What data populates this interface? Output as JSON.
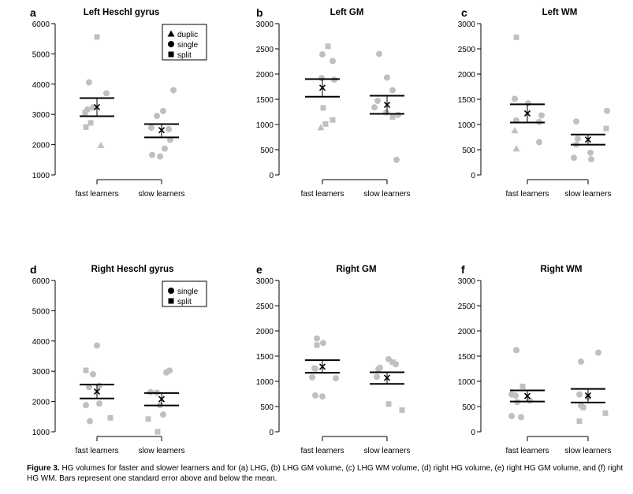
{
  "legend_markers": {
    "duplic": "triangle",
    "single": "circle",
    "split": "square"
  },
  "colors": {
    "points": "#c0c0c0",
    "bars": "#000000",
    "axes": "#000000"
  },
  "caption": {
    "label": "Figure 3.",
    "text": "HG volumes for faster and slower learners and for (a) LHG, (b) LHG GM volume, (c) LHG WM volume, (d) right HG volume, (e) right HG GM volume, and (f) right HG WM. Bars represent one standard error above and below the mean."
  },
  "chart_data": [
    {
      "panel": "a",
      "title": "Left Heschl gyrus",
      "type": "scatter",
      "categories": [
        "fast learners",
        "slow learners"
      ],
      "ylim": [
        1000,
        6000
      ],
      "yticks": [
        1000,
        2000,
        3000,
        4000,
        5000,
        6000
      ],
      "legend": {
        "entries": [
          "duplic",
          "single",
          "split"
        ],
        "placement": "top-right"
      },
      "groups": [
        {
          "category": "fast learners",
          "mean": 3240,
          "se_low": 2940,
          "se_high": 3540,
          "points": [
            {
              "v": 5560,
              "m": "split",
              "o": 0
            },
            {
              "v": 4060,
              "m": "single",
              "o": -10
            },
            {
              "v": 3700,
              "m": "single",
              "o": 12
            },
            {
              "v": 3230,
              "m": "single",
              "o": -5
            },
            {
              "v": 3160,
              "m": "single",
              "o": -12
            },
            {
              "v": 3060,
              "m": "split",
              "o": -15
            },
            {
              "v": 2720,
              "m": "split",
              "o": -8
            },
            {
              "v": 2580,
              "m": "split",
              "o": -14
            },
            {
              "v": 1980,
              "m": "duplic",
              "o": 5
            }
          ]
        },
        {
          "category": "slow learners",
          "mean": 2480,
          "se_low": 2240,
          "se_high": 2680,
          "points": [
            {
              "v": 3800,
              "m": "single",
              "o": 15
            },
            {
              "v": 3110,
              "m": "single",
              "o": 2
            },
            {
              "v": 2950,
              "m": "single",
              "o": -6
            },
            {
              "v": 2560,
              "m": "single",
              "o": -13
            },
            {
              "v": 2510,
              "m": "single",
              "o": 9
            },
            {
              "v": 2160,
              "m": "single",
              "o": 11
            },
            {
              "v": 1870,
              "m": "single",
              "o": 4
            },
            {
              "v": 1660,
              "m": "single",
              "o": -12
            },
            {
              "v": 1610,
              "m": "single",
              "o": -2
            }
          ]
        }
      ]
    },
    {
      "panel": "b",
      "title": "Left GM",
      "type": "scatter",
      "categories": [
        "fast learners",
        "slow learners"
      ],
      "ylim": [
        0,
        3000
      ],
      "yticks": [
        0,
        500,
        1000,
        1500,
        2000,
        2500,
        3000
      ],
      "groups": [
        {
          "category": "fast learners",
          "mean": 1730,
          "se_low": 1550,
          "se_high": 1900,
          "points": [
            {
              "v": 2550,
              "m": "split",
              "o": 7
            },
            {
              "v": 2390,
              "m": "single",
              "o": 0
            },
            {
              "v": 2260,
              "m": "single",
              "o": 13
            },
            {
              "v": 1920,
              "m": "single",
              "o": -1
            },
            {
              "v": 1890,
              "m": "single",
              "o": 15
            },
            {
              "v": 1330,
              "m": "split",
              "o": 1
            },
            {
              "v": 1090,
              "m": "split",
              "o": 13
            },
            {
              "v": 1010,
              "m": "split",
              "o": 4
            },
            {
              "v": 940,
              "m": "duplic",
              "o": -2
            }
          ]
        },
        {
          "category": "slow learners",
          "mean": 1390,
          "se_low": 1210,
          "se_high": 1570,
          "points": [
            {
              "v": 2400,
              "m": "single",
              "o": -10
            },
            {
              "v": 1930,
              "m": "single",
              "o": 0
            },
            {
              "v": 1680,
              "m": "single",
              "o": 7
            },
            {
              "v": 1470,
              "m": "single",
              "o": -12
            },
            {
              "v": 1340,
              "m": "single",
              "o": -16
            },
            {
              "v": 1240,
              "m": "single",
              "o": -1
            },
            {
              "v": 1190,
              "m": "single",
              "o": 14
            },
            {
              "v": 1150,
              "m": "split",
              "o": 7
            },
            {
              "v": 300,
              "m": "single",
              "o": 12
            }
          ]
        }
      ]
    },
    {
      "panel": "c",
      "title": "Left WM",
      "type": "scatter",
      "categories": [
        "fast learners",
        "slow learners"
      ],
      "ylim": [
        0,
        3000
      ],
      "yticks": [
        0,
        500,
        1000,
        1500,
        2000,
        2500,
        3000
      ],
      "groups": [
        {
          "category": "fast learners",
          "mean": 1220,
          "se_low": 1040,
          "se_high": 1400,
          "points": [
            {
              "v": 2730,
              "m": "split",
              "o": -14
            },
            {
              "v": 1510,
              "m": "single",
              "o": -16
            },
            {
              "v": 1420,
              "m": "single",
              "o": 1
            },
            {
              "v": 1180,
              "m": "single",
              "o": 18
            },
            {
              "v": 1080,
              "m": "single",
              "o": -14
            },
            {
              "v": 1050,
              "m": "single",
              "o": 15
            },
            {
              "v": 880,
              "m": "duplic",
              "o": -16
            },
            {
              "v": 650,
              "m": "single",
              "o": 15
            },
            {
              "v": 520,
              "m": "duplic",
              "o": -14
            }
          ]
        },
        {
          "category": "slow learners",
          "mean": 700,
          "se_low": 600,
          "se_high": 800,
          "points": [
            {
              "v": 1270,
              "m": "single",
              "o": 24
            },
            {
              "v": 1060,
              "m": "single",
              "o": -15
            },
            {
              "v": 920,
              "m": "split",
              "o": 23
            },
            {
              "v": 720,
              "m": "single",
              "o": -13
            },
            {
              "v": 600,
              "m": "single",
              "o": -15
            },
            {
              "v": 440,
              "m": "single",
              "o": 3
            },
            {
              "v": 340,
              "m": "single",
              "o": -18
            },
            {
              "v": 310,
              "m": "single",
              "o": 4
            }
          ]
        }
      ]
    },
    {
      "panel": "d",
      "title": "Right Heschl gyrus",
      "type": "scatter",
      "categories": [
        "fast learners",
        "slow learners"
      ],
      "ylim": [
        1000,
        6000
      ],
      "yticks": [
        1000,
        2000,
        3000,
        4000,
        5000,
        6000
      ],
      "legend": {
        "entries": [
          "single",
          "split"
        ],
        "placement": "top-right"
      },
      "groups": [
        {
          "category": "fast learners",
          "mean": 2330,
          "se_low": 2100,
          "se_high": 2560,
          "points": [
            {
              "v": 3850,
              "m": "single",
              "o": 0
            },
            {
              "v": 3030,
              "m": "split",
              "o": -14
            },
            {
              "v": 2900,
              "m": "single",
              "o": -5
            },
            {
              "v": 2520,
              "m": "single",
              "o": 3
            },
            {
              "v": 2480,
              "m": "single",
              "o": -10
            },
            {
              "v": 1930,
              "m": "single",
              "o": 3
            },
            {
              "v": 1880,
              "m": "single",
              "o": -14
            },
            {
              "v": 1460,
              "m": "split",
              "o": 17
            },
            {
              "v": 1350,
              "m": "single",
              "o": -9
            }
          ]
        },
        {
          "category": "slow learners",
          "mean": 2080,
          "se_low": 1870,
          "se_high": 2280,
          "points": [
            {
              "v": 3020,
              "m": "single",
              "o": 10
            },
            {
              "v": 2960,
              "m": "single",
              "o": 6
            },
            {
              "v": 2310,
              "m": "single",
              "o": -14
            },
            {
              "v": 2290,
              "m": "single",
              "o": -6
            },
            {
              "v": 1880,
              "m": "single",
              "o": -2
            },
            {
              "v": 1570,
              "m": "single",
              "o": 2
            },
            {
              "v": 1420,
              "m": "split",
              "o": -17
            },
            {
              "v": 1000,
              "m": "split",
              "o": -5
            }
          ]
        }
      ]
    },
    {
      "panel": "e",
      "title": "Right GM",
      "type": "scatter",
      "categories": [
        "fast learners",
        "slow learners"
      ],
      "ylim": [
        0,
        3000
      ],
      "yticks": [
        0,
        500,
        1000,
        1500,
        2000,
        2500,
        3000
      ],
      "groups": [
        {
          "category": "fast learners",
          "mean": 1290,
          "se_low": 1170,
          "se_high": 1420,
          "points": [
            {
              "v": 1850,
              "m": "single",
              "o": -7
            },
            {
              "v": 1760,
              "m": "single",
              "o": 1
            },
            {
              "v": 1720,
              "m": "split",
              "o": -7
            },
            {
              "v": 1260,
              "m": "single",
              "o": -10
            },
            {
              "v": 1250,
              "m": "single",
              "o": -9
            },
            {
              "v": 1080,
              "m": "single",
              "o": -13
            },
            {
              "v": 1060,
              "m": "single",
              "o": 17
            },
            {
              "v": 720,
              "m": "single",
              "o": -9
            },
            {
              "v": 700,
              "m": "single",
              "o": 0
            }
          ]
        },
        {
          "category": "slow learners",
          "mean": 1070,
          "se_low": 950,
          "se_high": 1180,
          "points": [
            {
              "v": 1440,
              "m": "single",
              "o": 2
            },
            {
              "v": 1380,
              "m": "split",
              "o": 7
            },
            {
              "v": 1340,
              "m": "single",
              "o": 11
            },
            {
              "v": 1270,
              "m": "single",
              "o": -9
            },
            {
              "v": 1240,
              "m": "single",
              "o": -11
            },
            {
              "v": 1090,
              "m": "single",
              "o": -13
            },
            {
              "v": 550,
              "m": "split",
              "o": 2
            },
            {
              "v": 430,
              "m": "split",
              "o": 19
            }
          ]
        }
      ]
    },
    {
      "panel": "f",
      "title": "Right WM",
      "type": "scatter",
      "categories": [
        "fast learners",
        "slow learners"
      ],
      "ylim": [
        0,
        3000
      ],
      "yticks": [
        0,
        500,
        1000,
        1500,
        2000,
        2500,
        3000
      ],
      "groups": [
        {
          "category": "fast learners",
          "mean": 710,
          "se_low": 600,
          "se_high": 820,
          "points": [
            {
              "v": 1620,
              "m": "single",
              "o": -14
            },
            {
              "v": 900,
              "m": "split",
              "o": -6
            },
            {
              "v": 740,
              "m": "single",
              "o": -20
            },
            {
              "v": 720,
              "m": "single",
              "o": -15
            },
            {
              "v": 620,
              "m": "single",
              "o": 3
            },
            {
              "v": 590,
              "m": "single",
              "o": -13
            },
            {
              "v": 310,
              "m": "single",
              "o": -20
            },
            {
              "v": 290,
              "m": "single",
              "o": -8
            }
          ]
        },
        {
          "category": "slow learners",
          "mean": 720,
          "se_low": 580,
          "se_high": 850,
          "points": [
            {
              "v": 1570,
              "m": "single",
              "o": 13
            },
            {
              "v": 1390,
              "m": "single",
              "o": -9
            },
            {
              "v": 740,
              "m": "single",
              "o": -11
            },
            {
              "v": 680,
              "m": "single",
              "o": 0
            },
            {
              "v": 520,
              "m": "single",
              "o": -9
            },
            {
              "v": 480,
              "m": "split",
              "o": -6
            },
            {
              "v": 370,
              "m": "split",
              "o": 22
            },
            {
              "v": 210,
              "m": "split",
              "o": -11
            }
          ]
        }
      ]
    }
  ]
}
